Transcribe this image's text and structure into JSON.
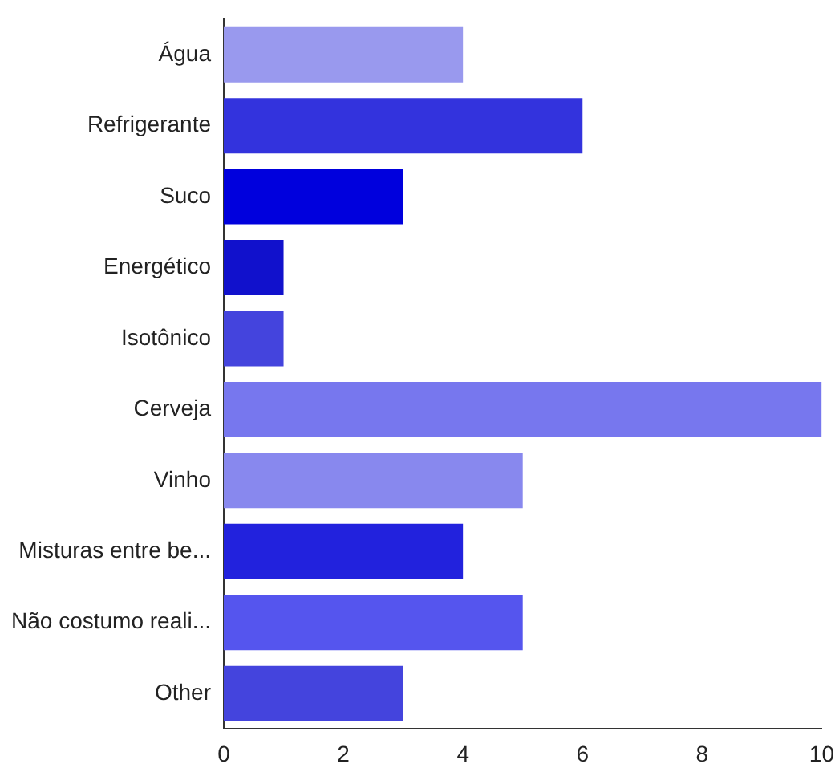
{
  "chart_data": {
    "type": "bar",
    "orientation": "horizontal",
    "categories": [
      "Água",
      "Refrigerante",
      "Suco",
      "Energético",
      "Isotônico",
      "Cerveja",
      "Vinho",
      "Misturas entre be...",
      "Não costumo reali...",
      "Other"
    ],
    "values": [
      4,
      6,
      3,
      1,
      1,
      10,
      5,
      4,
      5,
      3
    ],
    "colors": [
      "#9999ee",
      "#3333dd",
      "#0000dd",
      "#1111cc",
      "#4444dd",
      "#7777ee",
      "#8888ee",
      "#2222dd",
      "#5555ee",
      "#4444dd"
    ],
    "xlim": [
      0,
      10
    ],
    "xticks": [
      0,
      2,
      4,
      6,
      8,
      10
    ],
    "grid": false,
    "legend": false
  }
}
